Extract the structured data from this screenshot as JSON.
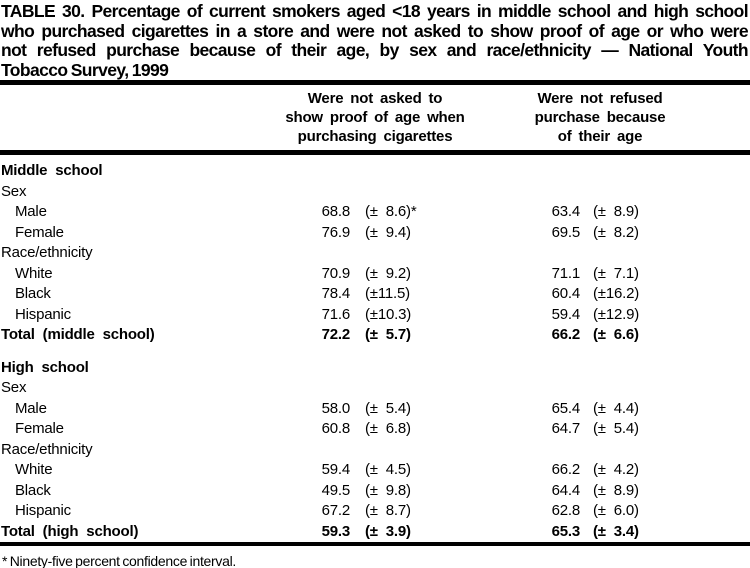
{
  "title_lines": [
    "TABLE 30. Percentage of current smokers aged <18 years in middle school and high school",
    "who purchased cigarettes in a store and were not asked to show proof of age or who were",
    "not refused purchase because of their age, by sex and race/ethnicity — National Youth",
    "Tobacco Survey, 1999"
  ],
  "table": {
    "column_headers": [
      "Were not asked to\nshow proof of age when\npurchasing cigarettes",
      "Were not refused\npurchase because\nof their age"
    ],
    "rows": [
      {
        "label": "Middle school",
        "style": "section",
        "c1": "",
        "c1ci": "",
        "c2": "",
        "c2ci": ""
      },
      {
        "label": "Sex",
        "style": "sub",
        "c1": "",
        "c1ci": "",
        "c2": "",
        "c2ci": ""
      },
      {
        "label": "Male",
        "style": "item",
        "c1": "68.8",
        "c1ci": "(± 8.6)*",
        "c2": "63.4",
        "c2ci": "(± 8.9)"
      },
      {
        "label": "Female",
        "style": "item",
        "c1": "76.9",
        "c1ci": "(± 9.4)",
        "c2": "69.5",
        "c2ci": "(± 8.2)"
      },
      {
        "label": "Race/ethnicity",
        "style": "sub",
        "c1": "",
        "c1ci": "",
        "c2": "",
        "c2ci": ""
      },
      {
        "label": "White",
        "style": "item",
        "c1": "70.9",
        "c1ci": "(± 9.2)",
        "c2": "71.1",
        "c2ci": "(± 7.1)"
      },
      {
        "label": "Black",
        "style": "item",
        "c1": "78.4",
        "c1ci": "(±11.5)",
        "c2": "60.4",
        "c2ci": "(±16.2)"
      },
      {
        "label": "Hispanic",
        "style": "item",
        "c1": "71.6",
        "c1ci": "(±10.3)",
        "c2": "59.4",
        "c2ci": "(±12.9)"
      },
      {
        "label": "Total (middle school)",
        "style": "total",
        "c1": "72.2",
        "c1ci": "(± 5.7)",
        "c2": "66.2",
        "c2ci": "(± 6.6)"
      },
      {
        "label": "High school",
        "style": "section",
        "gap_before": true,
        "c1": "",
        "c1ci": "",
        "c2": "",
        "c2ci": ""
      },
      {
        "label": "Sex",
        "style": "sub",
        "c1": "",
        "c1ci": "",
        "c2": "",
        "c2ci": ""
      },
      {
        "label": "Male",
        "style": "item",
        "c1": "58.0",
        "c1ci": "(± 5.4)",
        "c2": "65.4",
        "c2ci": "(± 4.4)"
      },
      {
        "label": "Female",
        "style": "item",
        "c1": "60.8",
        "c1ci": "(± 6.8)",
        "c2": "64.7",
        "c2ci": "(± 5.4)"
      },
      {
        "label": "Race/ethnicity",
        "style": "sub",
        "c1": "",
        "c1ci": "",
        "c2": "",
        "c2ci": ""
      },
      {
        "label": "White",
        "style": "item",
        "c1": "59.4",
        "c1ci": "(± 4.5)",
        "c2": "66.2",
        "c2ci": "(± 4.2)"
      },
      {
        "label": "Black",
        "style": "item",
        "c1": "49.5",
        "c1ci": "(± 9.8)",
        "c2": "64.4",
        "c2ci": "(± 8.9)"
      },
      {
        "label": "Hispanic",
        "style": "item",
        "c1": "67.2",
        "c1ci": "(± 8.7)",
        "c2": "62.8",
        "c2ci": "(± 6.0)"
      },
      {
        "label": "Total (high school)",
        "style": "total",
        "c1": "59.3",
        "c1ci": "(± 3.9)",
        "c2": "65.3",
        "c2ci": "(± 3.4)"
      }
    ]
  },
  "footnote": "* Ninety-five percent confidence interval.",
  "colors": {
    "text": "#000000",
    "background": "#ffffff",
    "rule": "#000000"
  }
}
